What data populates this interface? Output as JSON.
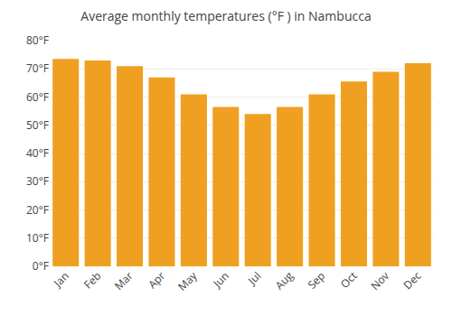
{
  "chart_data": {
    "type": "bar",
    "title": "Average monthly temperatures (°F ) in Nambucca",
    "categories": [
      "Jan",
      "Feb",
      "Mar",
      "Apr",
      "May",
      "Jun",
      "Jul",
      "Aug",
      "Sep",
      "Oct",
      "Nov",
      "Dec"
    ],
    "values": [
      73.5,
      73.0,
      71.0,
      67.0,
      61.0,
      56.5,
      54.0,
      56.5,
      61.0,
      65.5,
      69.0,
      72.0
    ],
    "color": "#F0A020",
    "ylim": [
      0,
      80
    ],
    "yticks": [
      {
        "value": 0,
        "label": "0°F"
      },
      {
        "value": 10,
        "label": "10°F"
      },
      {
        "value": 20,
        "label": "20°F"
      },
      {
        "value": 30,
        "label": "30°F"
      },
      {
        "value": 40,
        "label": "40°F"
      },
      {
        "value": 50,
        "label": "50°F"
      },
      {
        "value": 60,
        "label": "60°F"
      },
      {
        "value": 70,
        "label": "70°F"
      },
      {
        "value": 80,
        "label": "80°F"
      }
    ],
    "grid": true
  }
}
